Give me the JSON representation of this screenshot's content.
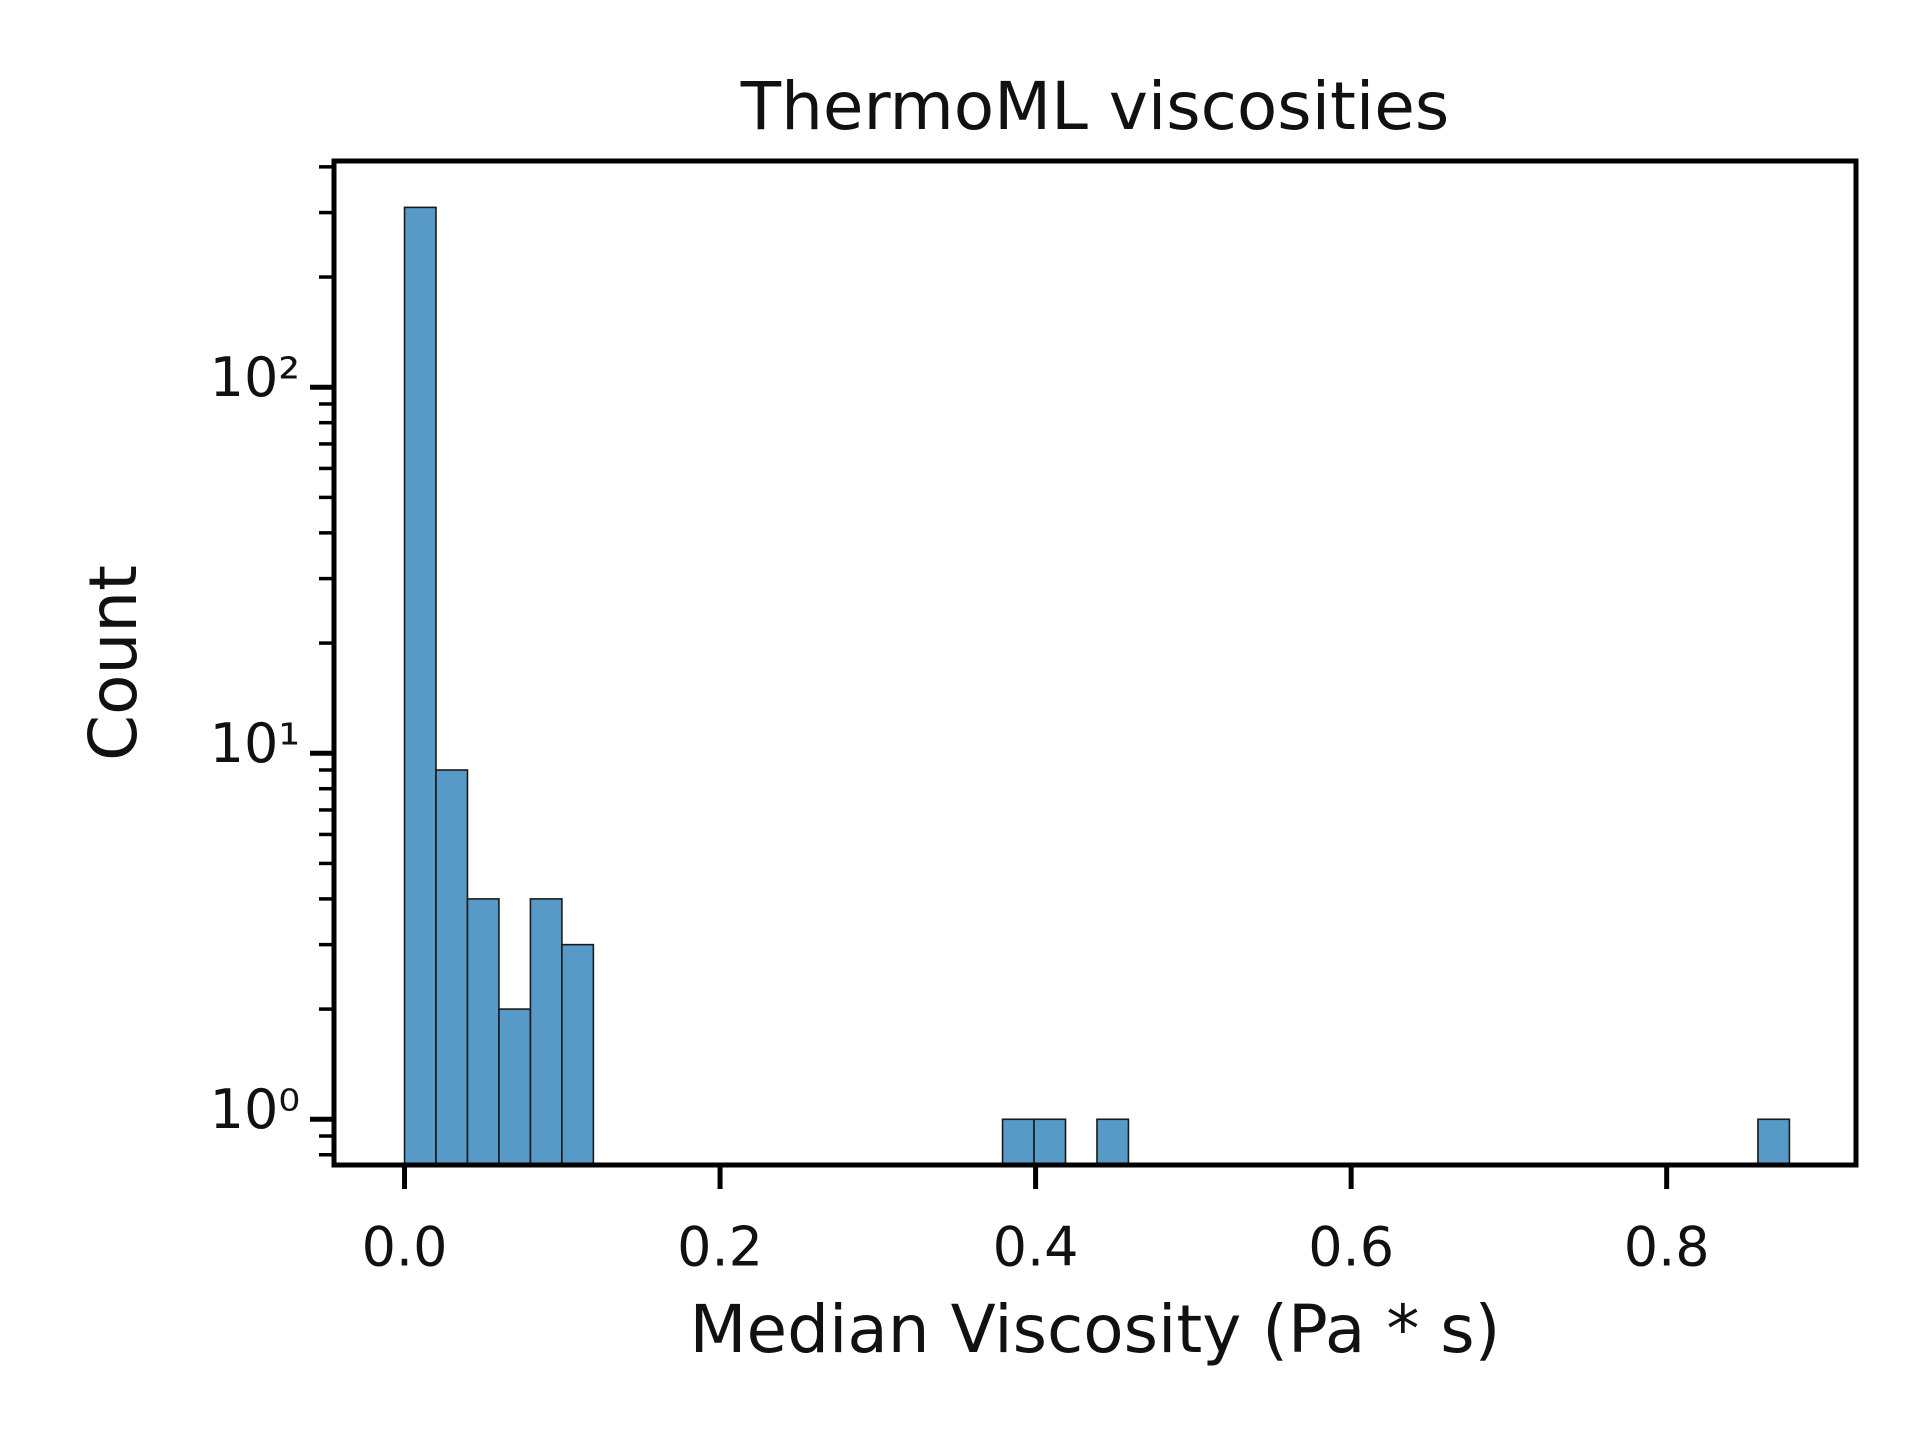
{
  "chart_data": {
    "type": "histogram",
    "title": "ThermoML viscosities",
    "x_label": "Median Viscosity (Pa * s)",
    "y_label": "Count",
    "bins": [
      0,
      0.01995,
      0.0399,
      0.05985,
      0.0798,
      0.09975,
      0.1197,
      0.13965,
      0.1596,
      0.17955,
      0.1995,
      0.21945,
      0.2394,
      0.25935,
      0.2793,
      0.29925,
      0.3192,
      0.33915,
      0.3591,
      0.37905,
      0.399,
      0.41895,
      0.4389,
      0.45885,
      0.4788,
      0.49875,
      0.5187,
      0.53865,
      0.5586,
      0.57855,
      0.5985,
      0.61845,
      0.6384,
      0.65835,
      0.6783,
      0.69825,
      0.7182,
      0.73815,
      0.7581,
      0.77805,
      0.798,
      0.81795,
      0.8379,
      0.85785,
      0.8778
    ],
    "values": [
      310,
      9,
      4,
      2,
      4,
      3,
      0,
      0,
      0,
      0,
      0,
      0,
      0,
      0,
      0,
      0,
      0,
      0,
      0,
      1,
      1,
      0,
      1,
      0,
      0,
      0,
      0,
      0,
      0,
      0,
      0,
      0,
      0,
      0,
      0,
      0,
      0,
      0,
      0,
      0,
      0,
      0,
      0,
      1
    ],
    "color": "#5799c7",
    "edge_color": "#1a1a1a",
    "xlim": [
      -0.0447,
      0.92
    ],
    "xticks": [
      {
        "value": 0,
        "label": "0.0"
      },
      0.2,
      0.4,
      0.6,
      0.8
    ],
    "ylim": [
      0.75,
      415
    ],
    "yscale": "log",
    "yticks": [
      {
        "value": 1,
        "label": "10⁰"
      },
      {
        "value": 10,
        "label": "10¹"
      },
      {
        "value": 100,
        "label": "10²"
      }
    ],
    "yminorticks": [
      0.8,
      0.9,
      2,
      3,
      4,
      5,
      6,
      7,
      8,
      9,
      20,
      30,
      40,
      50,
      60,
      70,
      80,
      90,
      200,
      300,
      400
    ],
    "grid": false
  }
}
